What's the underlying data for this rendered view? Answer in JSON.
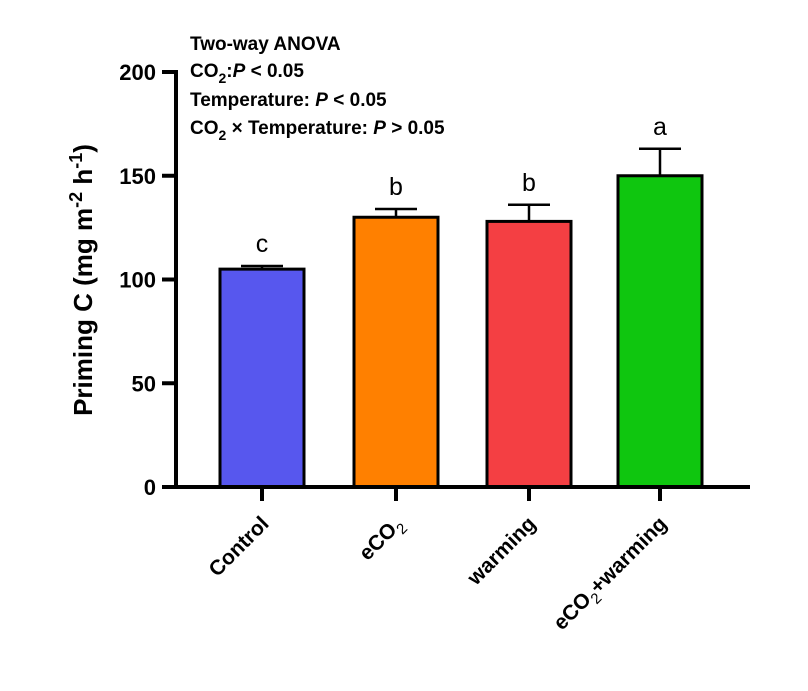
{
  "chart_data": {
    "type": "bar",
    "categories": [
      "Control",
      "eCO2",
      "warming",
      "eCO2+warming"
    ],
    "category_parts": [
      {
        "main": "Control",
        "sub": "",
        "after": ""
      },
      {
        "main": "eCO",
        "sub": "2",
        "after": ""
      },
      {
        "main": "warming",
        "sub": "",
        "after": ""
      },
      {
        "main": "eCO",
        "sub": "2",
        "after": "+warming"
      }
    ],
    "values": [
      105,
      130,
      128,
      150
    ],
    "errors": [
      1.5,
      4,
      8,
      13
    ],
    "significance_letters": [
      "c",
      "b",
      "b",
      "a"
    ],
    "bar_colors": [
      "#5757ee",
      "#ff8000",
      "#f43f43",
      "#0fc60f"
    ],
    "ylabel_parts": {
      "main": "Priming C (mg m",
      "sup1": "-2",
      "mid": " h",
      "sup2": "-1",
      "end": ")"
    },
    "xlabel": "",
    "ylim": [
      0,
      200
    ],
    "yticks": [
      0,
      50,
      100,
      150,
      200
    ],
    "grid": false,
    "annotation": {
      "line1": "Two-way ANOVA",
      "line2": {
        "a": "CO",
        "sub": "2",
        "b": ":",
        "p": "P",
        "c": " < 0.05"
      },
      "line3": {
        "a": "Temperature: ",
        "p": "P",
        "c": " < 0.05"
      },
      "line4": {
        "a": "CO",
        "sub": "2",
        "b": " × Temperature: ",
        "p": "P",
        "c": " > 0.05"
      }
    }
  }
}
